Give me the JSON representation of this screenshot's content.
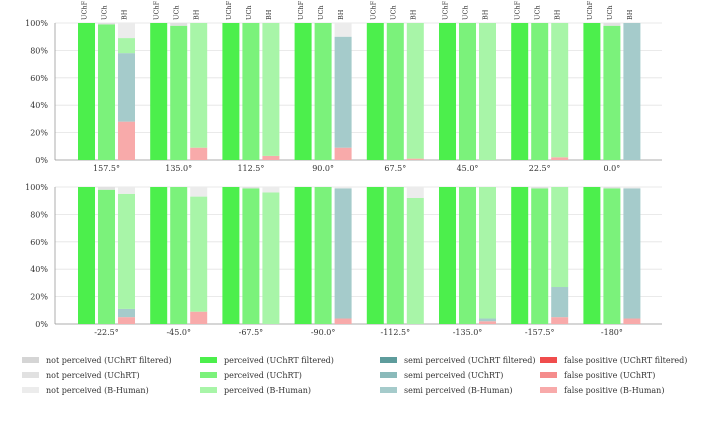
{
  "colors": {
    "perceived": [
      "#4cef4c",
      "#7bf27b",
      "#a8f5a8"
    ],
    "semi": [
      "#5e9c9c",
      "#8ababa",
      "#a5cbcb"
    ],
    "false": [
      "#f04d4d",
      "#f58c8c",
      "#f8aaaa"
    ],
    "not": [
      "#d5d5d5",
      "#e1e1e1",
      "#ececec"
    ]
  },
  "chart_data": [
    {
      "type": "bar",
      "stacked": true,
      "ylim": [
        0,
        100
      ],
      "yticks": [
        "0%",
        "20%",
        "40%",
        "60%",
        "80%",
        "100%"
      ],
      "bar_labels": [
        "UChF",
        "UCh",
        "BH"
      ],
      "groups": [
        {
          "label": "157.5°",
          "bars": [
            {
              "false": 0,
              "semi": 0,
              "perceived": 100,
              "not": 0
            },
            {
              "false": 0,
              "semi": 0,
              "perceived": 99,
              "not": 1
            },
            {
              "false": 28,
              "semi": 50,
              "perceived": 11,
              "not": 11
            }
          ]
        },
        {
          "label": "135.0°",
          "bars": [
            {
              "false": 0,
              "semi": 0,
              "perceived": 100,
              "not": 0
            },
            {
              "false": 0,
              "semi": 0,
              "perceived": 98,
              "not": 2
            },
            {
              "false": 9,
              "semi": 0,
              "perceived": 91,
              "not": 0
            }
          ]
        },
        {
          "label": "112.5°",
          "bars": [
            {
              "false": 0,
              "semi": 0,
              "perceived": 100,
              "not": 0
            },
            {
              "false": 0,
              "semi": 0,
              "perceived": 100,
              "not": 0
            },
            {
              "false": 3,
              "semi": 0,
              "perceived": 97,
              "not": 0
            }
          ]
        },
        {
          "label": "90.0°",
          "bars": [
            {
              "false": 0,
              "semi": 0,
              "perceived": 100,
              "not": 0
            },
            {
              "false": 0,
              "semi": 0,
              "perceived": 100,
              "not": 0
            },
            {
              "false": 9,
              "semi": 81,
              "perceived": 0,
              "not": 10
            }
          ]
        },
        {
          "label": "67.5°",
          "bars": [
            {
              "false": 0,
              "semi": 0,
              "perceived": 100,
              "not": 0
            },
            {
              "false": 0,
              "semi": 0,
              "perceived": 100,
              "not": 0
            },
            {
              "false": 1,
              "semi": 0,
              "perceived": 99,
              "not": 0
            }
          ]
        },
        {
          "label": "45.0°",
          "bars": [
            {
              "false": 0,
              "semi": 0,
              "perceived": 100,
              "not": 0
            },
            {
              "false": 0,
              "semi": 0,
              "perceived": 100,
              "not": 0
            },
            {
              "false": 0,
              "semi": 0,
              "perceived": 100,
              "not": 0
            }
          ]
        },
        {
          "label": "22.5°",
          "bars": [
            {
              "false": 0,
              "semi": 0,
              "perceived": 100,
              "not": 0
            },
            {
              "false": 0,
              "semi": 0,
              "perceived": 100,
              "not": 0
            },
            {
              "false": 2,
              "semi": 0,
              "perceived": 98,
              "not": 0
            }
          ]
        },
        {
          "label": "0.0°",
          "bars": [
            {
              "false": 0,
              "semi": 0,
              "perceived": 100,
              "not": 0
            },
            {
              "false": 0,
              "semi": 0,
              "perceived": 98,
              "not": 2
            },
            {
              "false": 0,
              "semi": 100,
              "perceived": 0,
              "not": 0
            }
          ]
        }
      ]
    },
    {
      "type": "bar",
      "stacked": true,
      "ylim": [
        0,
        100
      ],
      "yticks": [
        "0%",
        "20%",
        "40%",
        "60%",
        "80%",
        "100%"
      ],
      "bar_labels": [
        "UChF",
        "UCh",
        "BH"
      ],
      "groups": [
        {
          "label": "-22.5°",
          "bars": [
            {
              "false": 0,
              "semi": 0,
              "perceived": 100,
              "not": 0
            },
            {
              "false": 0,
              "semi": 0,
              "perceived": 98,
              "not": 2
            },
            {
              "false": 5,
              "semi": 6,
              "perceived": 84,
              "not": 5
            }
          ]
        },
        {
          "label": "-45.0°",
          "bars": [
            {
              "false": 0,
              "semi": 0,
              "perceived": 100,
              "not": 0
            },
            {
              "false": 0,
              "semi": 0,
              "perceived": 100,
              "not": 0
            },
            {
              "false": 9,
              "semi": 0,
              "perceived": 84,
              "not": 7
            }
          ]
        },
        {
          "label": "-67.5°",
          "bars": [
            {
              "false": 0,
              "semi": 0,
              "perceived": 100,
              "not": 0
            },
            {
              "false": 0,
              "semi": 0,
              "perceived": 99,
              "not": 1
            },
            {
              "false": 0,
              "semi": 0,
              "perceived": 96,
              "not": 4
            }
          ]
        },
        {
          "label": "-90.0°",
          "bars": [
            {
              "false": 0,
              "semi": 0,
              "perceived": 100,
              "not": 0
            },
            {
              "false": 0,
              "semi": 0,
              "perceived": 100,
              "not": 0
            },
            {
              "false": 4,
              "semi": 95,
              "perceived": 0,
              "not": 1
            }
          ]
        },
        {
          "label": "-112.5°",
          "bars": [
            {
              "false": 0,
              "semi": 0,
              "perceived": 100,
              "not": 0
            },
            {
              "false": 0,
              "semi": 0,
              "perceived": 100,
              "not": 0
            },
            {
              "false": 0,
              "semi": 0,
              "perceived": 92,
              "not": 8
            }
          ]
        },
        {
          "label": "-135.0°",
          "bars": [
            {
              "false": 0,
              "semi": 0,
              "perceived": 100,
              "not": 0
            },
            {
              "false": 0,
              "semi": 0,
              "perceived": 100,
              "not": 0
            },
            {
              "false": 2,
              "semi": 2,
              "perceived": 96,
              "not": 0
            }
          ]
        },
        {
          "label": "-157.5°",
          "bars": [
            {
              "false": 0,
              "semi": 0,
              "perceived": 100,
              "not": 0
            },
            {
              "false": 0,
              "semi": 0,
              "perceived": 99,
              "not": 1
            },
            {
              "false": 5,
              "semi": 22,
              "perceived": 73,
              "not": 0
            }
          ]
        },
        {
          "label": "-180°",
          "bars": [
            {
              "false": 0,
              "semi": 0,
              "perceived": 100,
              "not": 0
            },
            {
              "false": 0,
              "semi": 0,
              "perceived": 99,
              "not": 1
            },
            {
              "false": 4,
              "semi": 95,
              "perceived": 0,
              "not": 1
            }
          ]
        }
      ]
    }
  ],
  "legend": {
    "placement": "bottom",
    "columns": [
      [
        {
          "label": "not perceived (UChRT filtered)",
          "category": "not",
          "shade": 0
        },
        {
          "label": "not perceived (UChRT)",
          "category": "not",
          "shade": 1
        },
        {
          "label": "not perceived (B-Human)",
          "category": "not",
          "shade": 2
        }
      ],
      [
        {
          "label": "perceived (UChRT filtered)",
          "category": "perceived",
          "shade": 0
        },
        {
          "label": "perceived (UChRT)",
          "category": "perceived",
          "shade": 1
        },
        {
          "label": "perceived (B-Human)",
          "category": "perceived",
          "shade": 2
        }
      ],
      [
        {
          "label": "semi perceived (UChRT filtered)",
          "category": "semi",
          "shade": 0
        },
        {
          "label": "semi perceived (UChRT)",
          "category": "semi",
          "shade": 1
        },
        {
          "label": "semi perceived (B-Human)",
          "category": "semi",
          "shade": 2
        }
      ],
      [
        {
          "label": "false positive (UChRT filtered)",
          "category": "false",
          "shade": 0
        },
        {
          "label": "false positive (UChRT)",
          "category": "false",
          "shade": 1
        },
        {
          "label": "false positive (B-Human)",
          "category": "false",
          "shade": 2
        }
      ]
    ]
  }
}
